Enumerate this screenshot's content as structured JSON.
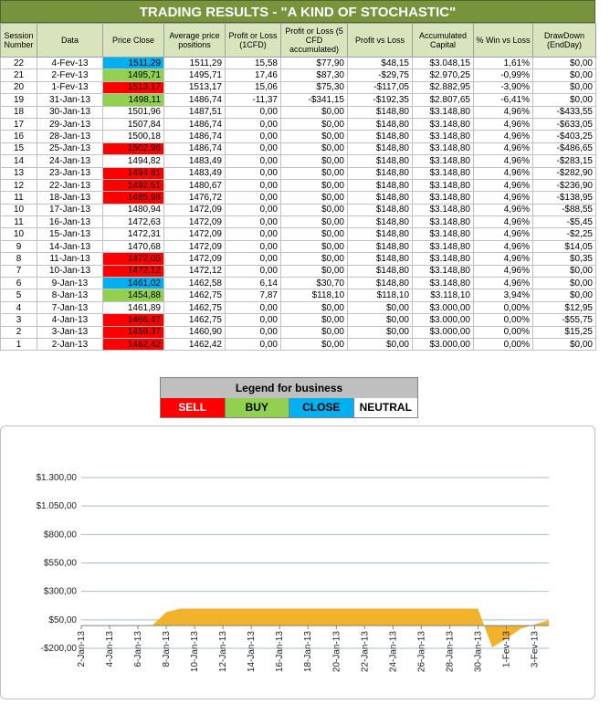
{
  "title": "TRADING RESULTS - \"A KIND OF STOCHASTIC\"",
  "columns": [
    "Session Number",
    "Data",
    "Price Close",
    "Average price positions",
    "Profit or Loss (1CFD)",
    "Profit or Loss (5 CFD accumulated)",
    "Profit vs Loss",
    "Accumulated Capital",
    "% Win vs Loss",
    "DrawDown (EndDay)"
  ],
  "rows": [
    {
      "session": "22",
      "date": "4-Fev-13",
      "price": "1511,29",
      "signal": "close",
      "avg": "1511,29",
      "pl1": "15,58",
      "pl5": "$77,90",
      "pvl": "$48,15",
      "capital": "$3.048,15",
      "win": "1,61%",
      "dd": "$0,00"
    },
    {
      "session": "21",
      "date": "2-Fev-13",
      "price": "1495,71",
      "signal": "buy",
      "avg": "1495,71",
      "pl1": "17,46",
      "pl5": "$87,30",
      "pvl": "-$29,75",
      "capital": "$2.970,25",
      "win": "-0,99%",
      "dd": "$0,00"
    },
    {
      "session": "20",
      "date": "1-Fev-13",
      "price": "1513,17",
      "signal": "sell",
      "avg": "1513,17",
      "pl1": "15,06",
      "pl5": "$75,30",
      "pvl": "-$117,05",
      "capital": "$2.882,95",
      "win": "-3,90%",
      "dd": "$0,00"
    },
    {
      "session": "19",
      "date": "31-Jan-13",
      "price": "1498,11",
      "signal": "buy",
      "avg": "1486,74",
      "pl1": "-11,37",
      "pl5": "-$341,15",
      "pvl": "-$192,35",
      "capital": "$2.807,65",
      "win": "-6,41%",
      "dd": "$0,00"
    },
    {
      "session": "18",
      "date": "30-Jan-13",
      "price": "1501,96",
      "signal": "neutral",
      "avg": "1487,51",
      "pl1": "0,00",
      "pl5": "$0,00",
      "pvl": "$148,80",
      "capital": "$3.148,80",
      "win": "4,96%",
      "dd": "-$433,55"
    },
    {
      "session": "17",
      "date": "29-Jan-13",
      "price": "1507,84",
      "signal": "neutral",
      "avg": "1486,74",
      "pl1": "0,00",
      "pl5": "$0,00",
      "pvl": "$148,80",
      "capital": "$3.148,80",
      "win": "4,96%",
      "dd": "-$633,05"
    },
    {
      "session": "16",
      "date": "28-Jan-13",
      "price": "1500,18",
      "signal": "neutral",
      "avg": "1486,74",
      "pl1": "0,00",
      "pl5": "$0,00",
      "pvl": "$148,80",
      "capital": "$3.148,80",
      "win": "4,96%",
      "dd": "-$403,25"
    },
    {
      "session": "15",
      "date": "25-Jan-13",
      "price": "1502,96",
      "signal": "sell",
      "avg": "1486,74",
      "pl1": "0,00",
      "pl5": "$0,00",
      "pvl": "$148,80",
      "capital": "$3.148,80",
      "win": "4,96%",
      "dd": "-$486,65"
    },
    {
      "session": "14",
      "date": "24-Jan-13",
      "price": "1494,82",
      "signal": "neutral",
      "avg": "1483,49",
      "pl1": "0,00",
      "pl5": "$0,00",
      "pvl": "$148,80",
      "capital": "$3.148,80",
      "win": "4,96%",
      "dd": "-$283,15"
    },
    {
      "session": "13",
      "date": "23-Jan-13",
      "price": "1494,81",
      "signal": "sell",
      "avg": "1483,49",
      "pl1": "0,00",
      "pl5": "$0,00",
      "pvl": "$148,80",
      "capital": "$3.148,80",
      "win": "4,96%",
      "dd": "-$282,90"
    },
    {
      "session": "12",
      "date": "22-Jan-13",
      "price": "1492,51",
      "signal": "sell",
      "avg": "1480,67",
      "pl1": "0,00",
      "pl5": "$0,00",
      "pvl": "$148,80",
      "capital": "$3.148,80",
      "win": "4,96%",
      "dd": "-$236,90"
    },
    {
      "session": "11",
      "date": "18-Jan-13",
      "price": "1485,98",
      "signal": "sell",
      "avg": "1476,72",
      "pl1": "0,00",
      "pl5": "$0,00",
      "pvl": "$148,80",
      "capital": "$3.148,80",
      "win": "4,96%",
      "dd": "-$138,95"
    },
    {
      "session": "10",
      "date": "17-Jan-13",
      "price": "1480,94",
      "signal": "neutral",
      "avg": "1472,09",
      "pl1": "0,00",
      "pl5": "$0,00",
      "pvl": "$148,80",
      "capital": "$3.148,80",
      "win": "4,96%",
      "dd": "-$88,55"
    },
    {
      "session": "11",
      "date": "16-Jan-13",
      "price": "1472,63",
      "signal": "neutral",
      "avg": "1472,09",
      "pl1": "0,00",
      "pl5": "$0,00",
      "pvl": "$148,80",
      "capital": "$3.148,80",
      "win": "4,96%",
      "dd": "-$5,45"
    },
    {
      "session": "10",
      "date": "15-Jan-13",
      "price": "1472,31",
      "signal": "neutral",
      "avg": "1472,09",
      "pl1": "0,00",
      "pl5": "$0,00",
      "pvl": "$148,80",
      "capital": "$3.148,80",
      "win": "4,96%",
      "dd": "-$2,25"
    },
    {
      "session": "9",
      "date": "14-Jan-13",
      "price": "1470,68",
      "signal": "neutral",
      "avg": "1472,09",
      "pl1": "0,00",
      "pl5": "$0,00",
      "pvl": "$148,80",
      "capital": "$3.148,80",
      "win": "4,96%",
      "dd": "$14,05"
    },
    {
      "session": "8",
      "date": "11-Jan-13",
      "price": "1472,05",
      "signal": "sell",
      "avg": "1472,09",
      "pl1": "0,00",
      "pl5": "$0,00",
      "pvl": "$148,80",
      "capital": "$3.148,80",
      "win": "4,96%",
      "dd": "$0,35"
    },
    {
      "session": "7",
      "date": "10-Jan-13",
      "price": "1472,12",
      "signal": "sell",
      "avg": "1472,12",
      "pl1": "0,00",
      "pl5": "$0,00",
      "pvl": "$148,80",
      "capital": "$3.148,80",
      "win": "4,96%",
      "dd": "$0,00"
    },
    {
      "session": "6",
      "date": "9-Jan-13",
      "price": "1461,02",
      "signal": "close",
      "avg": "1462,58",
      "pl1": "6,14",
      "pl5": "$30,70",
      "pvl": "$148,80",
      "capital": "$3.148,80",
      "win": "4,96%",
      "dd": "$0,00"
    },
    {
      "session": "5",
      "date": "8-Jan-13",
      "price": "1454,88",
      "signal": "buy",
      "avg": "1462,75",
      "pl1": "7,87",
      "pl5": "$118,10",
      "pvl": "$118,10",
      "capital": "$3.118,10",
      "win": "3,94%",
      "dd": "$0,00"
    },
    {
      "session": "4",
      "date": "7-Jan-13",
      "price": "1461,89",
      "signal": "neutral",
      "avg": "1462,75",
      "pl1": "0,00",
      "pl5": "$0,00",
      "pvl": "$0,00",
      "capital": "$3.000,00",
      "win": "0,00%",
      "dd": "$12,95"
    },
    {
      "session": "3",
      "date": "4-Jan-13",
      "price": "1466,47",
      "signal": "sell",
      "avg": "1462,75",
      "pl1": "0,00",
      "pl5": "$0,00",
      "pvl": "$0,00",
      "capital": "$3.000,00",
      "win": "0,00%",
      "dd": "-$55,75"
    },
    {
      "session": "2",
      "date": "3-Jan-13",
      "price": "1459,37",
      "signal": "sell",
      "avg": "1460,90",
      "pl1": "0,00",
      "pl5": "$0,00",
      "pvl": "$0,00",
      "capital": "$3.000,00",
      "win": "0,00%",
      "dd": "$15,25"
    },
    {
      "session": "1",
      "date": "2-Jan-13",
      "price": "1462,42",
      "signal": "sell",
      "avg": "1462,42",
      "pl1": "0,00",
      "pl5": "$0,00",
      "pvl": "$0,00",
      "capital": "$3.000,00",
      "win": "0,00%",
      "dd": "$0,00"
    }
  ],
  "legend": {
    "title": "Legend for business",
    "sell": "SELL",
    "buy": "BUY",
    "close": "CLOSE",
    "neutral": "NEUTRAL"
  },
  "colors": {
    "title_bg": "#77933c",
    "header_bg": "#d8e4bc",
    "sell": "#ff0000",
    "buy": "#92d050",
    "close": "#00b0f0",
    "area": "#f2b22c"
  },
  "chart_data": {
    "type": "area",
    "x_ticks": [
      "2-Jan-13",
      "4-Jan-13",
      "6-Jan-13",
      "8-Jan-13",
      "10-Jan-13",
      "12-Jan-13",
      "14-Jan-13",
      "16-Jan-13",
      "18-Jan-13",
      "20-Jan-13",
      "22-Jan-13",
      "24-Jan-13",
      "26-Jan-13",
      "28-Jan-13",
      "30-Jan-13",
      "1-Fev-13",
      "3-Fev-13"
    ],
    "y_ticks": [
      "$1.300,00",
      "$1.050,00",
      "$800,00",
      "$550,00",
      "$300,00",
      "$50,00",
      "-$200,00"
    ],
    "y_tick_values": [
      1300,
      1050,
      800,
      550,
      300,
      50,
      -200
    ],
    "ylim": [
      -200,
      1300
    ],
    "xlim": [
      "2-Jan-13",
      "4-Fev-13"
    ],
    "series": [
      {
        "x": [
          "2-Jan-13",
          "3-Jan-13",
          "4-Jan-13",
          "5-Jan-13",
          "6-Jan-13",
          "7-Jan-13",
          "8-Jan-13",
          "9-Jan-13",
          "10-Jan-13",
          "30-Jan-13",
          "31-Jan-13",
          "1-Fev-13",
          "2-Fev-13",
          "4-Fev-13"
        ],
        "values": [
          0,
          0,
          0,
          0,
          0,
          0,
          118.1,
          148.8,
          148.8,
          148.8,
          -192.35,
          -117.05,
          -29.75,
          48.15
        ]
      }
    ],
    "grid": true
  }
}
